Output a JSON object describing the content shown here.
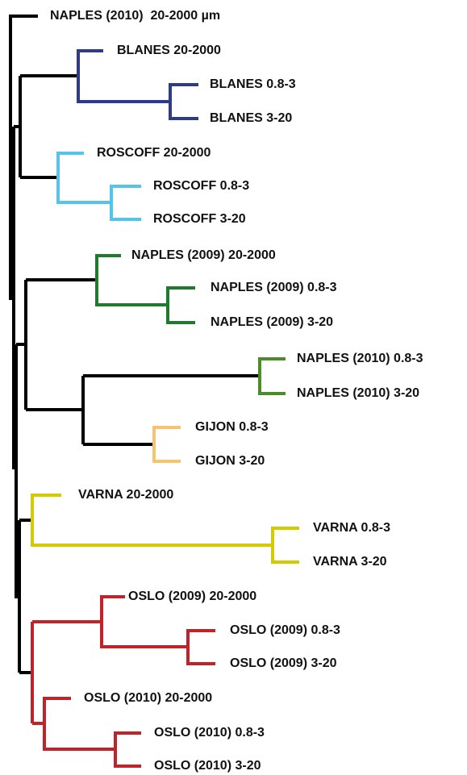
{
  "leaves": [
    "NAPLES (2010)  20-2000 µm",
    "BLANES 20-2000",
    "BLANES 0.8-3",
    "BLANES 3-20",
    "ROSCOFF 20-2000",
    "ROSCOFF 0.8-3",
    "ROSCOFF 3-20",
    "NAPLES (2009) 20-2000",
    "NAPLES (2009) 0.8-3",
    "NAPLES (2009) 3-20",
    "NAPLES (2010) 0.8-3",
    "NAPLES (2010) 3-20",
    "GIJON 0.8-3",
    "GIJON 3-20",
    "VARNA 20-2000",
    "VARNA 0.8-3",
    "VARNA 3-20",
    "OSLO (2009) 20-2000",
    "OSLO (2009) 0.8-3",
    "OSLO (2009) 3-20",
    "OSLO (2010) 20-2000",
    "OSLO (2010) 0.8-3",
    "OSLO (2010) 3-20"
  ]
}
